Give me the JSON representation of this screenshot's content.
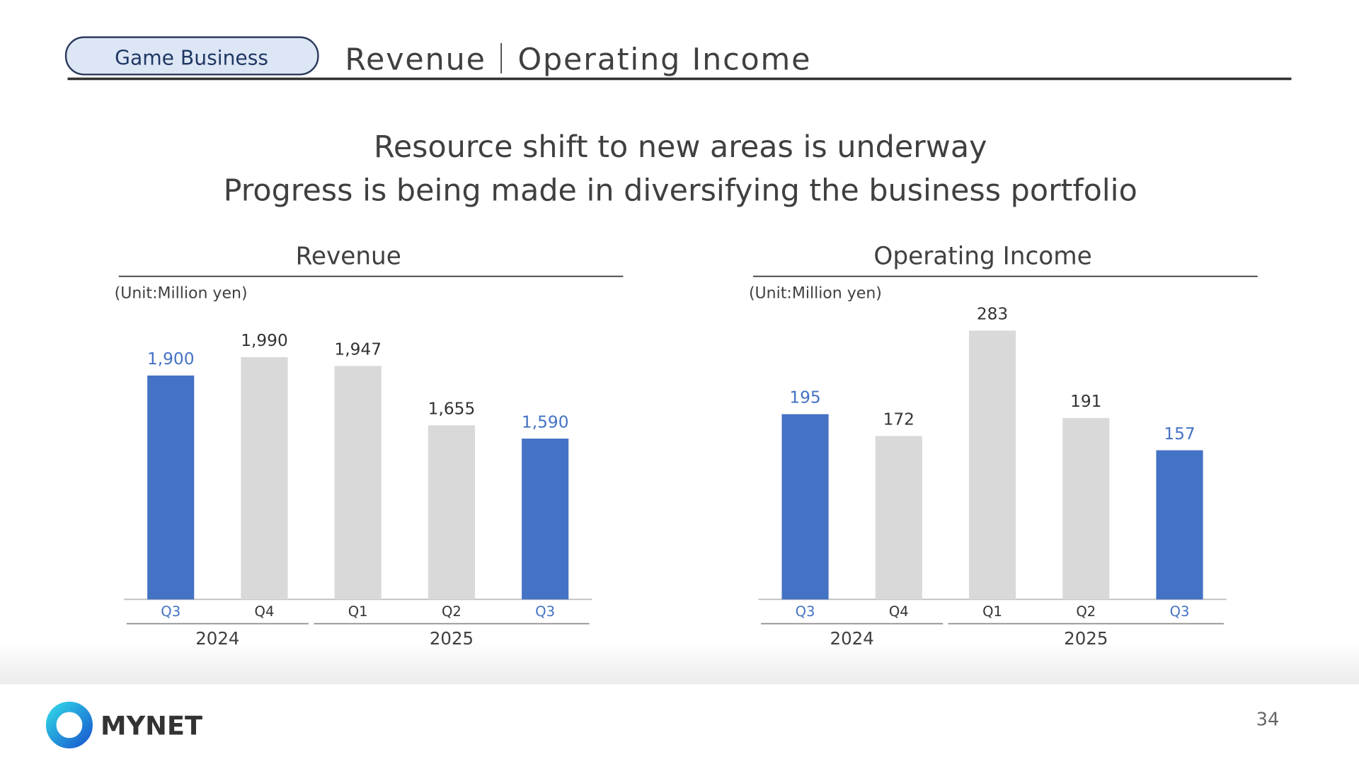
{
  "header": {
    "tag": "Game Business",
    "title": "Revenue｜Operating Income"
  },
  "headline": [
    "Resource shift to new areas is underway",
    "Progress is being made in diversifying the business portfolio"
  ],
  "chart_data": [
    {
      "type": "bar",
      "title": "Revenue",
      "unit_label": "(Unit:Million yen)",
      "groups": [
        {
          "name": "2024",
          "categories": [
            "Q3",
            "Q4"
          ]
        },
        {
          "name": "2025",
          "categories": [
            "Q1",
            "Q2",
            "Q3"
          ]
        }
      ],
      "values": [
        1900,
        1990,
        1947,
        1655,
        1590
      ],
      "value_labels": [
        "1,900",
        "1,990",
        "1,947",
        "1,655",
        "1,590"
      ],
      "colors": [
        "#4472c4",
        "#d9d9d9",
        "#d9d9d9",
        "#d9d9d9",
        "#4472c4"
      ],
      "label_colors": [
        "#4472c4",
        "#333333",
        "#333333",
        "#333333",
        "#4472c4"
      ],
      "ylim": [
        800,
        2200
      ]
    },
    {
      "type": "bar",
      "title": "Operating Income",
      "unit_label": "(Unit:Million yen)",
      "groups": [
        {
          "name": "2024",
          "categories": [
            "Q3",
            "Q4"
          ]
        },
        {
          "name": "2025",
          "categories": [
            "Q1",
            "Q2",
            "Q3"
          ]
        }
      ],
      "values": [
        195,
        172,
        283,
        191,
        157
      ],
      "colors": [
        "#4472c4",
        "#d9d9d9",
        "#d9d9d9",
        "#d9d9d9",
        "#4472c4"
      ],
      "label_colors": [
        "#4472c4",
        "#333333",
        "#333333",
        "#333333",
        "#4472c4"
      ],
      "ylim": [
        0,
        300
      ]
    }
  ],
  "footer": {
    "logo": "MYNET",
    "page": "34"
  }
}
